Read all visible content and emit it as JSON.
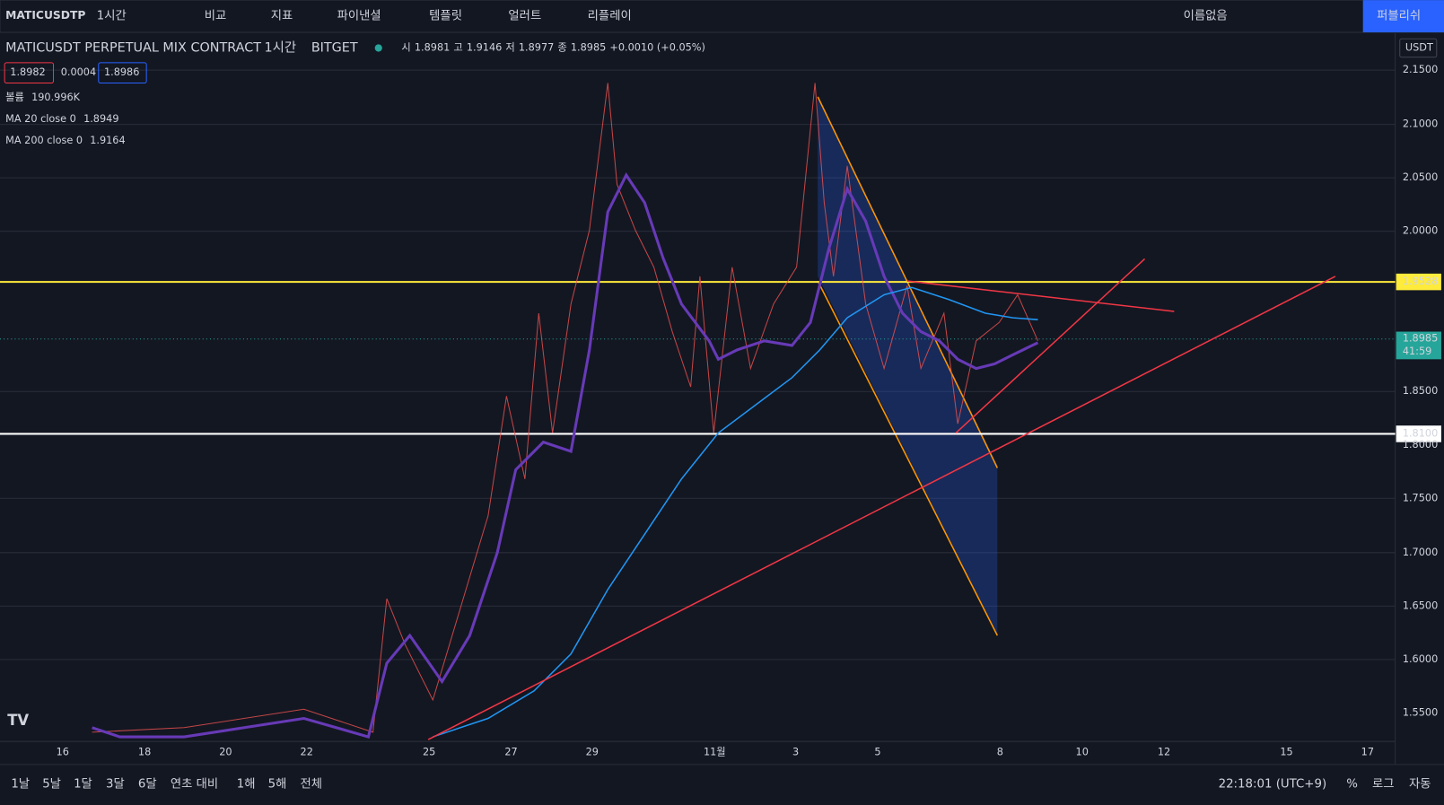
{
  "toolbar": {
    "symbol": "MATICUSDTP",
    "interval": "1시간",
    "items": [
      "비교",
      "지표",
      "파이낸셜",
      "템플릿",
      "얼러트",
      "리플레이"
    ],
    "layout_name": "이름없음",
    "publish": "퍼블리쉬"
  },
  "legend": {
    "title": "MATICUSDT PERPETUAL MIX CONTRACT",
    "interval": "1시간",
    "exchange": "BITGET",
    "ohlc": [
      "시",
      "1.8981",
      "고",
      "1.9146",
      "저",
      "1.8977",
      "종",
      "1.8985",
      "+0.0010 (+0.05%)"
    ],
    "bid": "1.8982",
    "spread": "0.0004",
    "ask": "1.8986",
    "indicators": [
      {
        "name": "볼륨",
        "value": "190.996K"
      },
      {
        "name": "MA 20 close 0",
        "value": "1.8949"
      },
      {
        "name": "MA 200 close 0",
        "value": "1.9164"
      }
    ]
  },
  "price_axis": {
    "currency": "USDT",
    "ticks": [
      "2.1500",
      "2.1000",
      "2.0500",
      "2.0000",
      "1.8500",
      "1.8000",
      "1.7500",
      "1.7000",
      "1.6500",
      "1.6000",
      "1.5500"
    ],
    "resistance": "1.9528",
    "last_price": "1.8985",
    "countdown": "41:59",
    "support": "1.8100"
  },
  "time_axis": [
    "16",
    "18",
    "20",
    "22",
    "25",
    "27",
    "29",
    "11월",
    "3",
    "5",
    "8",
    "10",
    "12",
    "15",
    "17"
  ],
  "bottom_bar": {
    "ranges": [
      "1날",
      "5날",
      "1달",
      "3달",
      "6달",
      "연초 대비",
      "1해",
      "5해",
      "전체"
    ],
    "clock": "22:18:01 (UTC+9)",
    "options": [
      "%",
      "로그",
      "자동"
    ]
  }
}
